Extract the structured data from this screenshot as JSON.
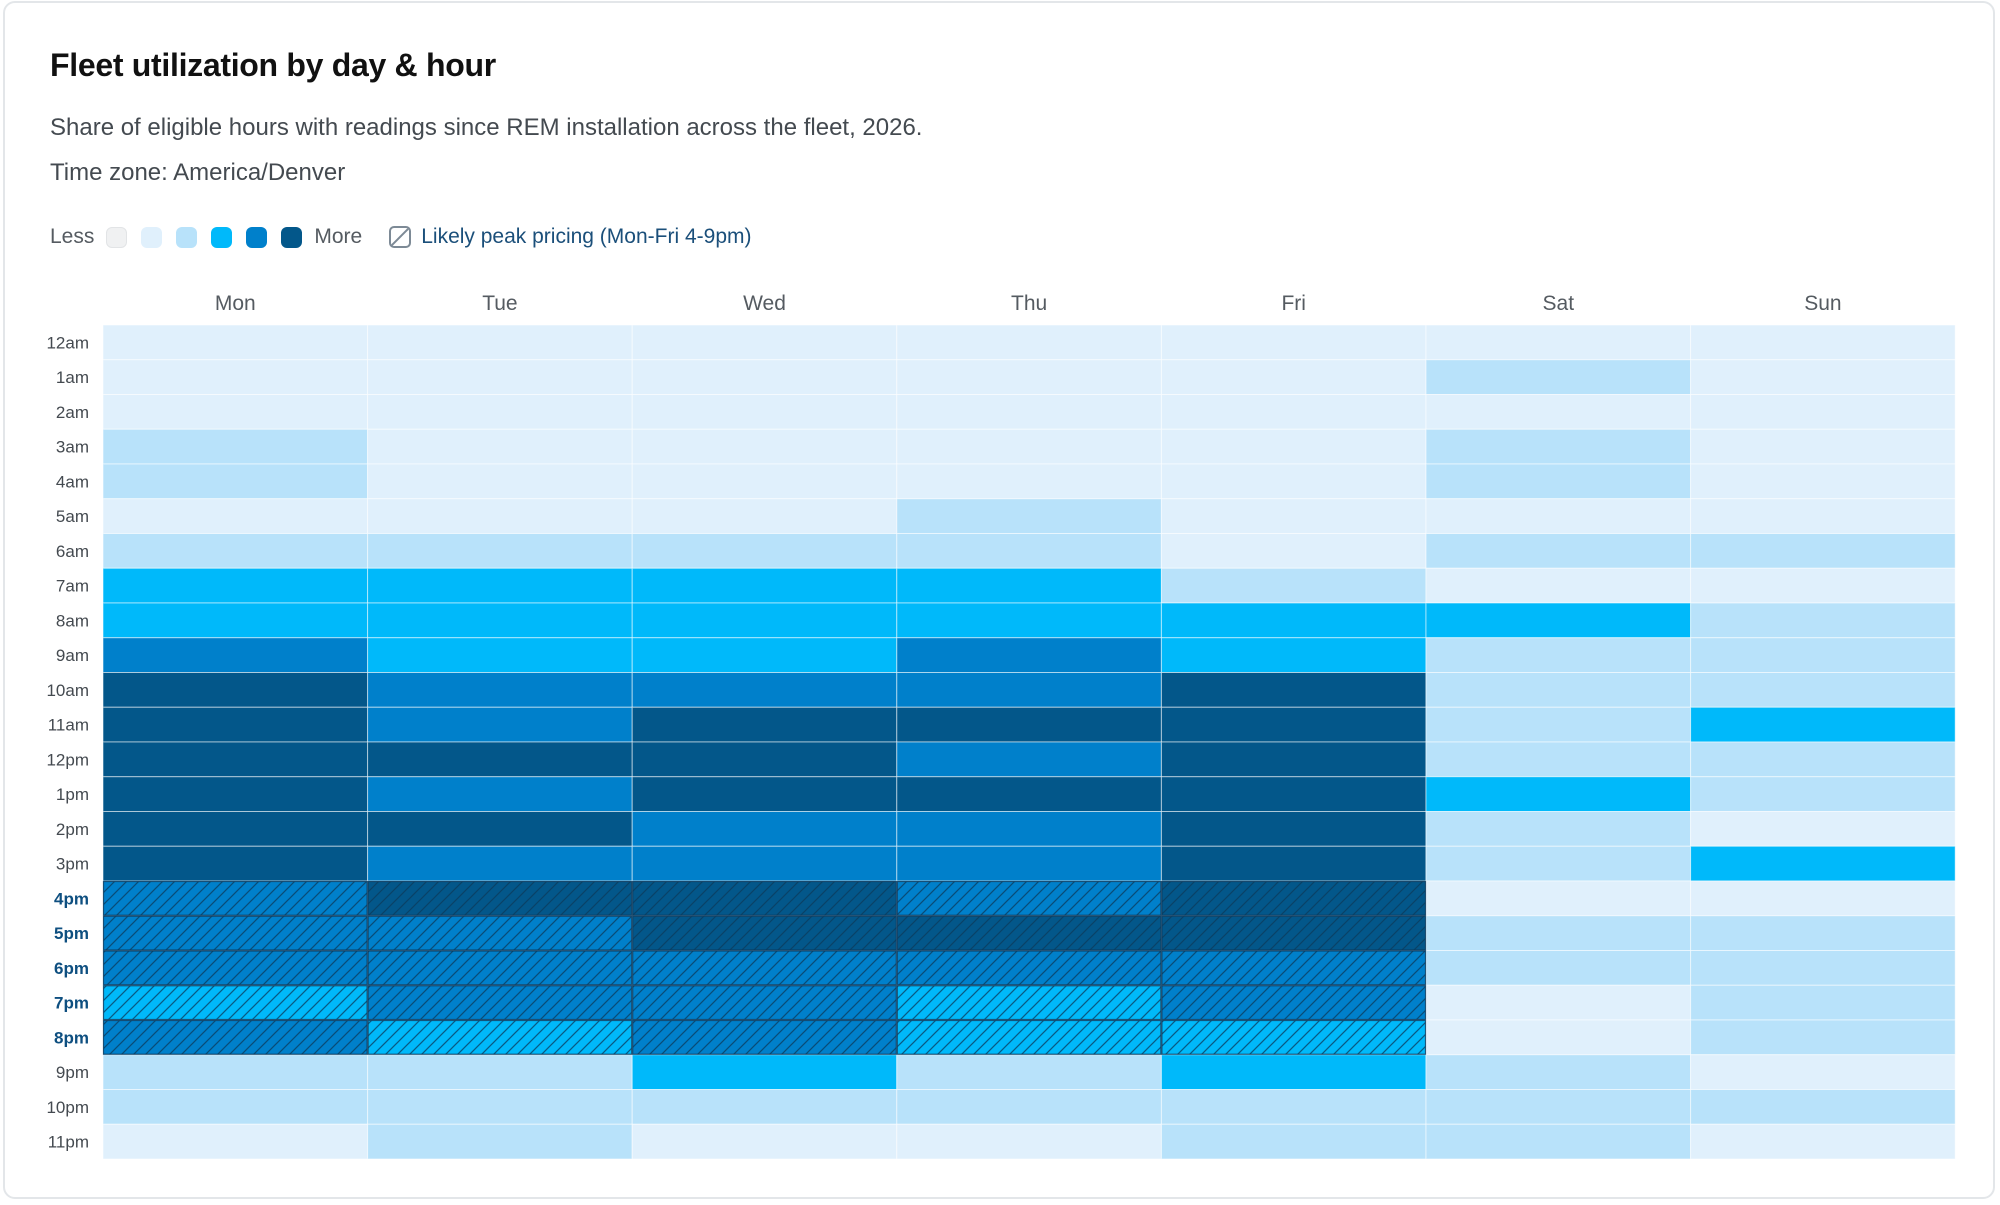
{
  "card": {
    "title": "Fleet utilization by day & hour",
    "subtitle": "Share of eligible hours with readings since REM installation across the fleet, 2026.",
    "timezone": "Time zone: America/Denver"
  },
  "legend": {
    "less_label": "Less",
    "more_label": "More",
    "peak_label": "Likely peak pricing (Mon-Fri 4-9pm)",
    "peak_icon": "hatch-icon"
  },
  "colors": {
    "level_0": "#f0f1f2",
    "level_1": "#e0f0fc",
    "level_2": "#b8e2fa",
    "level_3": "#00b9fa",
    "level_4": "#0080cb",
    "level_5": "#03578a",
    "peak_hatch": "#0b3a5c",
    "peak_label": "#0e4f80",
    "cell_border": "rgba(255,255,255,0.55)"
  },
  "chart_data": {
    "type": "heatmap",
    "title": "Fleet utilization by day & hour",
    "x": [
      "Mon",
      "Tue",
      "Wed",
      "Thu",
      "Fri",
      "Sat",
      "Sun"
    ],
    "y": [
      "12am",
      "1am",
      "2am",
      "3am",
      "4am",
      "5am",
      "6am",
      "7am",
      "8am",
      "9am",
      "10am",
      "11am",
      "12pm",
      "1pm",
      "2pm",
      "3pm",
      "4pm",
      "5pm",
      "6pm",
      "7pm",
      "8pm",
      "9pm",
      "10pm",
      "11pm"
    ],
    "scale_levels": 6,
    "scale": "ordinal intensity level 0 (Less) to 5 (More)",
    "values": [
      [
        1,
        1,
        1,
        1,
        1,
        1,
        1
      ],
      [
        1,
        1,
        1,
        1,
        1,
        2,
        1
      ],
      [
        1,
        1,
        1,
        1,
        1,
        1,
        1
      ],
      [
        2,
        1,
        1,
        1,
        1,
        2,
        1
      ],
      [
        2,
        1,
        1,
        1,
        1,
        2,
        1
      ],
      [
        1,
        1,
        1,
        2,
        1,
        1,
        1
      ],
      [
        2,
        2,
        2,
        2,
        1,
        2,
        2
      ],
      [
        3,
        3,
        3,
        3,
        2,
        1,
        1
      ],
      [
        3,
        3,
        3,
        3,
        3,
        3,
        2
      ],
      [
        4,
        3,
        3,
        4,
        3,
        2,
        2
      ],
      [
        5,
        4,
        4,
        4,
        5,
        2,
        2
      ],
      [
        5,
        4,
        5,
        5,
        5,
        2,
        3
      ],
      [
        5,
        5,
        5,
        4,
        5,
        2,
        2
      ],
      [
        5,
        4,
        5,
        5,
        5,
        3,
        2
      ],
      [
        5,
        5,
        4,
        4,
        5,
        2,
        1
      ],
      [
        5,
        4,
        4,
        4,
        5,
        2,
        3
      ],
      [
        4,
        5,
        5,
        4,
        5,
        1,
        1
      ],
      [
        4,
        4,
        5,
        5,
        5,
        2,
        2
      ],
      [
        4,
        4,
        4,
        4,
        4,
        2,
        2
      ],
      [
        3,
        4,
        4,
        3,
        4,
        1,
        2
      ],
      [
        4,
        3,
        4,
        3,
        3,
        1,
        2
      ],
      [
        2,
        2,
        3,
        2,
        3,
        2,
        1
      ],
      [
        2,
        2,
        2,
        2,
        2,
        2,
        2
      ],
      [
        1,
        2,
        1,
        1,
        2,
        2,
        1
      ]
    ],
    "peak_pricing": {
      "days": [
        "Mon",
        "Tue",
        "Wed",
        "Thu",
        "Fri"
      ],
      "hours": [
        "4pm",
        "5pm",
        "6pm",
        "7pm",
        "8pm"
      ],
      "hatched": true
    },
    "grid": false,
    "legend": "top-left"
  }
}
